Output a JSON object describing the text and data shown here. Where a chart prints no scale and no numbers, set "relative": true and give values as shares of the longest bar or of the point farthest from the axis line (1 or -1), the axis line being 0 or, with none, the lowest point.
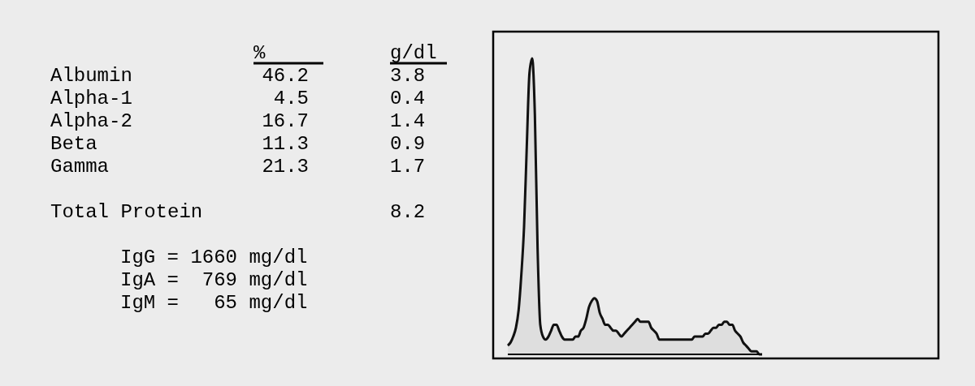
{
  "chart_data": [
    {
      "type": "other",
      "categories": [
        "Albumin",
        "Alpha-1",
        "Alpha-2",
        "Beta",
        "Gamma",
        "Total Protein"
      ],
      "data_labels": true,
      "series": [
        {
          "name": "%",
          "color": "#000000",
          "values": [
            46.2,
            4.5,
            16.7,
            11.3,
            21.3,
            null
          ]
        },
        {
          "name": "g/dl",
          "color": "#000000",
          "values": [
            3.8,
            0.4,
            1.4,
            0.9,
            1.7,
            8.2
          ]
        }
      ],
      "annotations": [
        "IgG = 1660 mg/dl",
        "IgA =  769 mg/dl",
        "IgM =   65 mg/dl"
      ]
    },
    {
      "type": "area",
      "relative": true,
      "color": "#111111",
      "categories": [
        null,
        null,
        null,
        null,
        null,
        null,
        null,
        null,
        null,
        null,
        null,
        null,
        null,
        null,
        null,
        null,
        null,
        null,
        null,
        null,
        null,
        null,
        null,
        null,
        null,
        null,
        null,
        null,
        null,
        null,
        null,
        null,
        null,
        null,
        null,
        null,
        null,
        null,
        null,
        null,
        null,
        null,
        null,
        null,
        null,
        null,
        null,
        null,
        null,
        null,
        null,
        null,
        null,
        null,
        null,
        null,
        null,
        null,
        null,
        null,
        null,
        null,
        null,
        null,
        null,
        null,
        null,
        null,
        null,
        null,
        null,
        null,
        null,
        null,
        null,
        null,
        null,
        null,
        null,
        null,
        null,
        null,
        null,
        null,
        null,
        null,
        null,
        null,
        null,
        null,
        null,
        null,
        null,
        null,
        null
      ],
      "values": [
        0.03,
        0.04,
        0.06,
        0.09,
        0.15,
        0.27,
        0.43,
        0.7,
        0.95,
        1,
        0.81,
        0.36,
        0.1,
        0.06,
        0.05,
        0.06,
        0.08,
        0.1,
        0.1,
        0.08,
        0.06,
        0.05,
        0.05,
        0.05,
        0.05,
        0.06,
        0.06,
        0.08,
        0.09,
        0.12,
        0.16,
        0.18,
        0.19,
        0.18,
        0.14,
        0.12,
        0.1,
        0.1,
        0.09,
        0.08,
        0.08,
        0.07,
        0.06,
        0.07,
        0.08,
        0.09,
        0.1,
        0.11,
        0.12,
        0.11,
        0.11,
        0.11,
        0.11,
        0.09,
        0.08,
        0.07,
        0.05,
        0.05,
        0.05,
        0.05,
        0.05,
        0.05,
        0.05,
        0.05,
        0.05,
        0.05,
        0.05,
        0.05,
        0.05,
        0.06,
        0.06,
        0.06,
        0.06,
        0.07,
        0.07,
        0.08,
        0.09,
        0.09,
        0.1,
        0.1,
        0.11,
        0.11,
        0.1,
        0.1,
        0.08,
        0.07,
        0.06,
        0.04,
        0.03,
        0.02,
        0.01,
        0.01,
        0.01,
        0,
        0
      ]
    }
  ]
}
